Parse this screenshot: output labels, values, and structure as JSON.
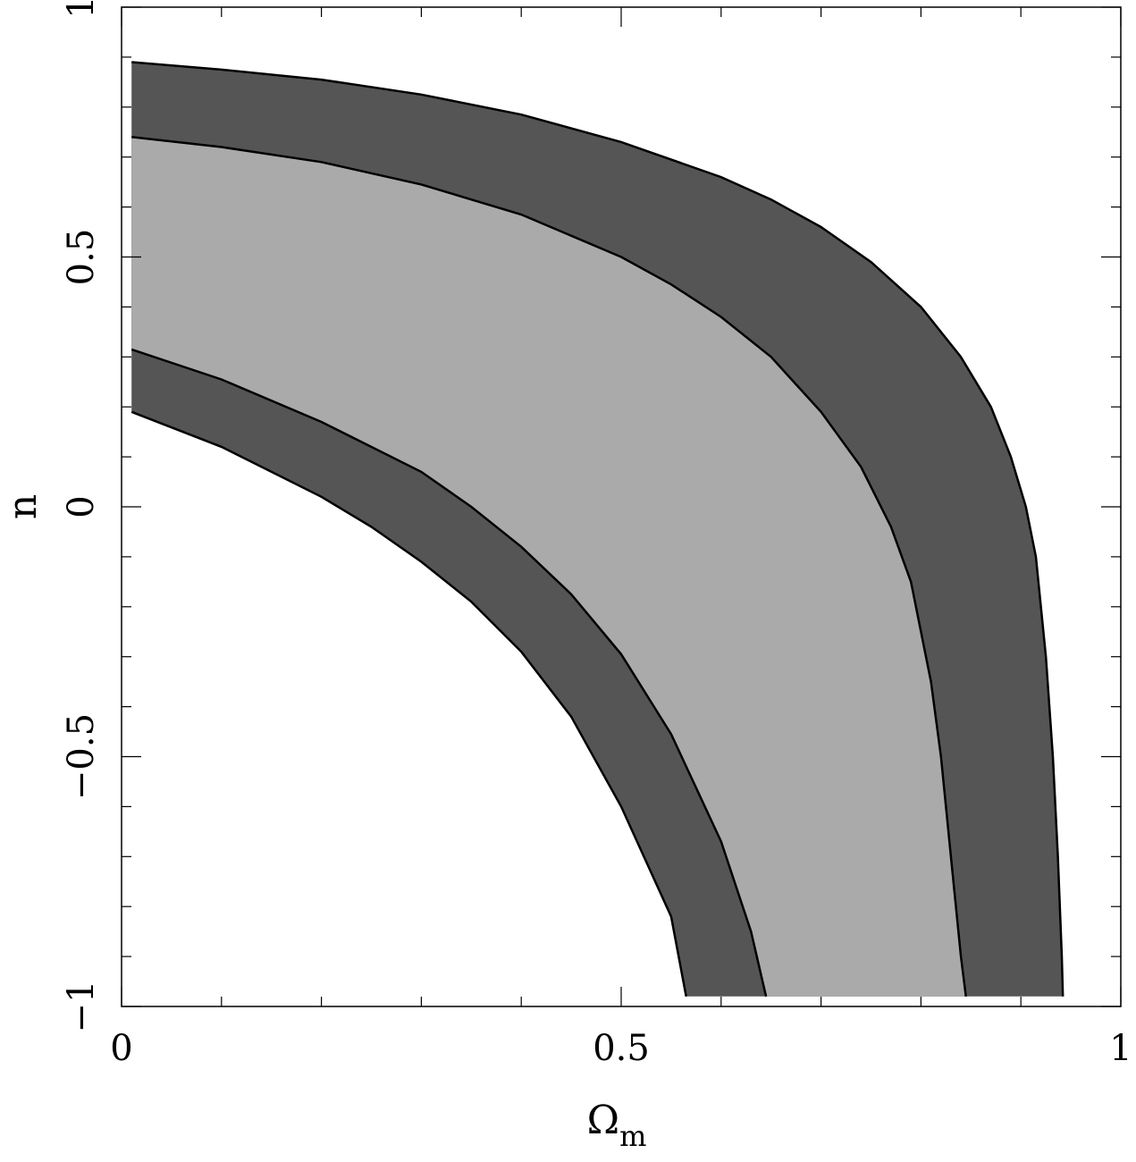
{
  "chart_data": {
    "type": "area",
    "title": "",
    "xlabel": "Ω",
    "xlabel_subscript": "m",
    "ylabel": "n",
    "xlim": [
      0,
      1
    ],
    "ylim": [
      -1,
      1
    ],
    "x_ticks": [
      {
        "value": 0,
        "label": "0"
      },
      {
        "value": 0.5,
        "label": "0.5"
      },
      {
        "value": 1,
        "label": "1"
      }
    ],
    "y_ticks": [
      {
        "value": -1,
        "label": "−1"
      },
      {
        "value": -0.5,
        "label": "−0.5"
      },
      {
        "value": 0,
        "label": "0"
      },
      {
        "value": 0.5,
        "label": "0.5"
      },
      {
        "value": 1,
        "label": "1"
      }
    ],
    "minor_tick_step_x": 0.1,
    "minor_tick_step_y": 0.1,
    "grid": false,
    "legend": "none",
    "colors": {
      "outer_region": "#555555",
      "inner_region": "#aaaaaa",
      "boundary": "#000000",
      "background": "#ffffff"
    },
    "boundaries": [
      {
        "name": "",
        "points": [
          [
            0.01,
            0.89
          ],
          [
            0.1,
            0.875
          ],
          [
            0.2,
            0.855
          ],
          [
            0.3,
            0.825
          ],
          [
            0.4,
            0.785
          ],
          [
            0.5,
            0.73
          ],
          [
            0.6,
            0.66
          ],
          [
            0.65,
            0.615
          ],
          [
            0.7,
            0.56
          ],
          [
            0.75,
            0.49
          ],
          [
            0.8,
            0.4
          ],
          [
            0.84,
            0.3
          ],
          [
            0.87,
            0.2
          ],
          [
            0.89,
            0.1
          ],
          [
            0.905,
            0.0
          ],
          [
            0.915,
            -0.1
          ],
          [
            0.925,
            -0.3
          ],
          [
            0.932,
            -0.5
          ],
          [
            0.937,
            -0.7
          ],
          [
            0.941,
            -0.9
          ],
          [
            0.942,
            -0.98
          ]
        ]
      },
      {
        "name": "",
        "points": [
          [
            0.01,
            0.74
          ],
          [
            0.1,
            0.72
          ],
          [
            0.2,
            0.69
          ],
          [
            0.3,
            0.645
          ],
          [
            0.4,
            0.585
          ],
          [
            0.5,
            0.5
          ],
          [
            0.55,
            0.445
          ],
          [
            0.6,
            0.38
          ],
          [
            0.65,
            0.3
          ],
          [
            0.7,
            0.19
          ],
          [
            0.74,
            0.08
          ],
          [
            0.77,
            -0.04
          ],
          [
            0.79,
            -0.15
          ],
          [
            0.8,
            -0.25
          ],
          [
            0.81,
            -0.35
          ],
          [
            0.82,
            -0.5
          ],
          [
            0.83,
            -0.7
          ],
          [
            0.84,
            -0.9
          ],
          [
            0.845,
            -0.98
          ]
        ]
      },
      {
        "name": "",
        "points": [
          [
            0.01,
            0.315
          ],
          [
            0.1,
            0.255
          ],
          [
            0.2,
            0.17
          ],
          [
            0.3,
            0.07
          ],
          [
            0.35,
            0.0
          ],
          [
            0.4,
            -0.08
          ],
          [
            0.45,
            -0.175
          ],
          [
            0.5,
            -0.295
          ],
          [
            0.55,
            -0.455
          ],
          [
            0.6,
            -0.67
          ],
          [
            0.63,
            -0.85
          ],
          [
            0.645,
            -0.98
          ]
        ]
      },
      {
        "name": "",
        "points": [
          [
            0.01,
            0.19
          ],
          [
            0.1,
            0.12
          ],
          [
            0.2,
            0.02
          ],
          [
            0.25,
            -0.04
          ],
          [
            0.3,
            -0.11
          ],
          [
            0.35,
            -0.19
          ],
          [
            0.4,
            -0.29
          ],
          [
            0.45,
            -0.42
          ],
          [
            0.5,
            -0.6
          ],
          [
            0.55,
            -0.82
          ],
          [
            0.565,
            -0.98
          ]
        ]
      }
    ],
    "bottom_edge_y": -0.98
  }
}
